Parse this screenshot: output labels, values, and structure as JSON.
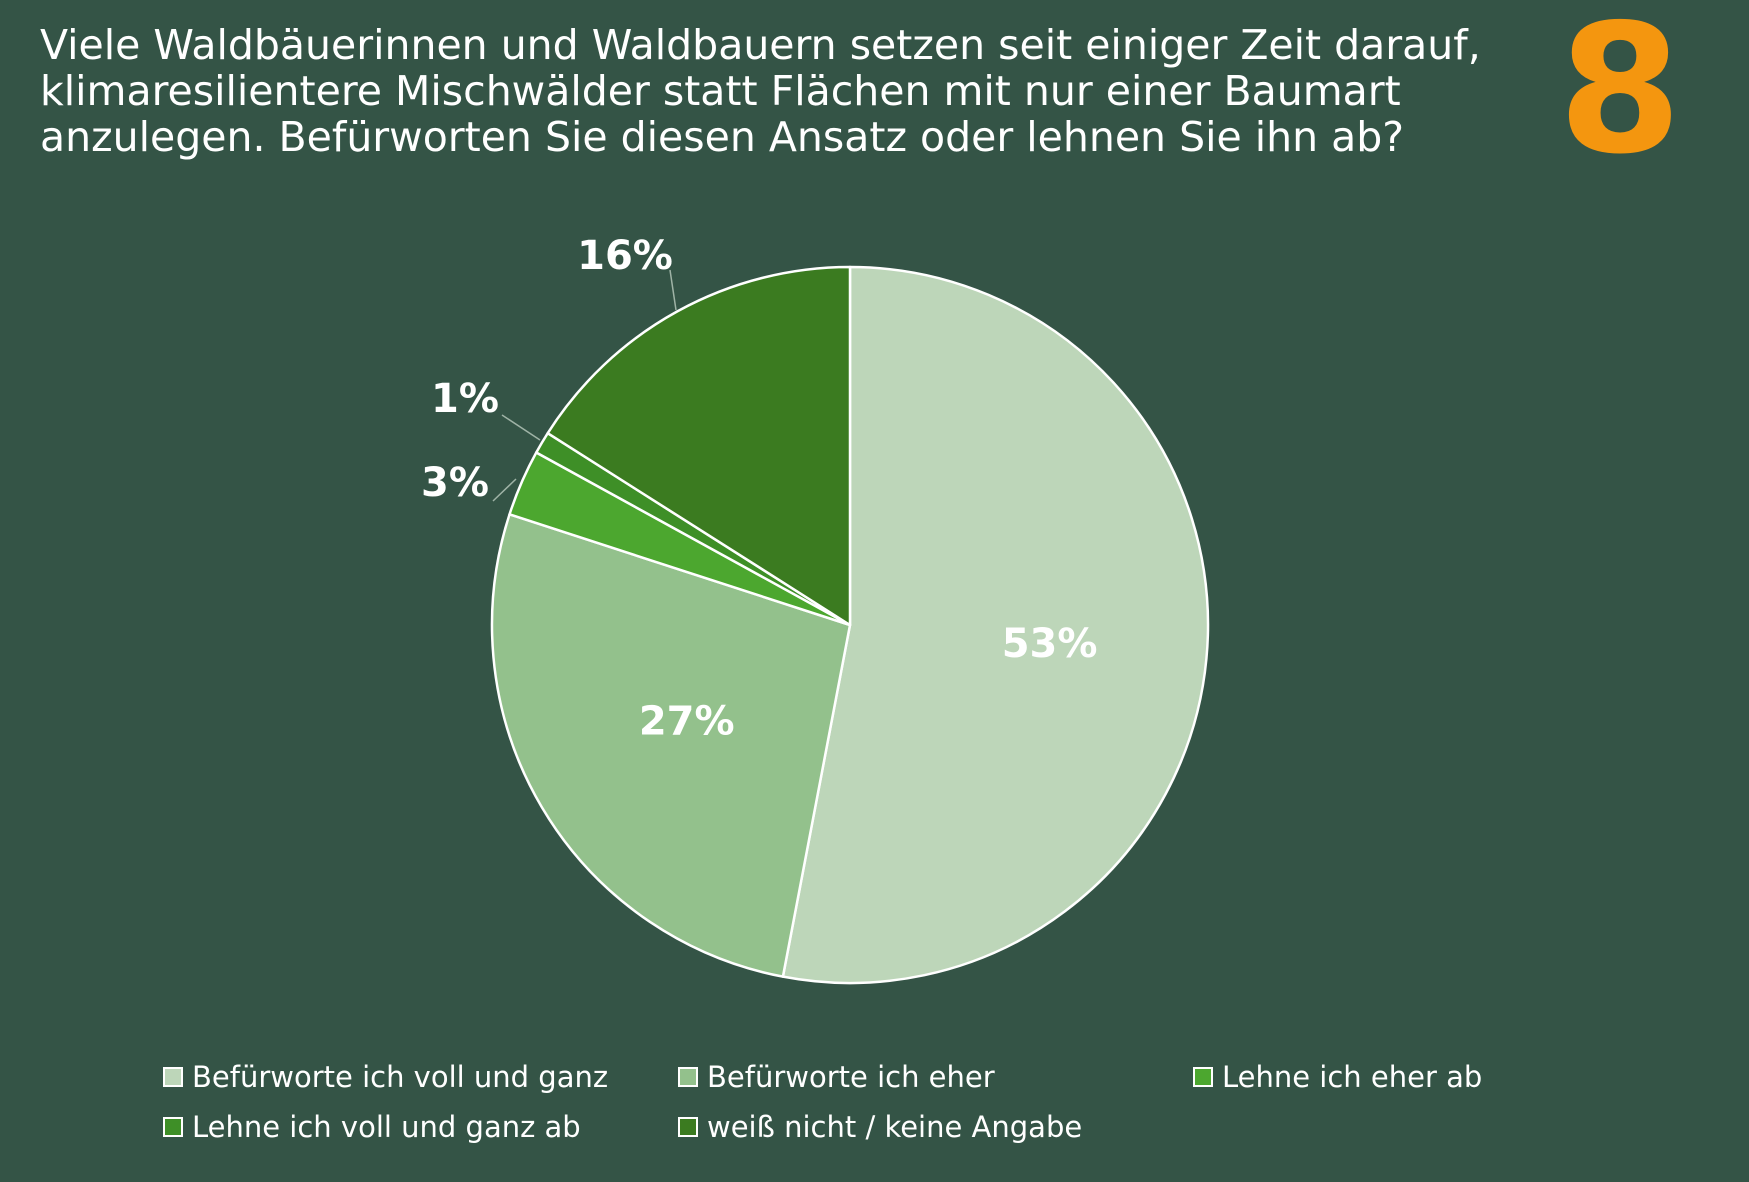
{
  "header": {
    "question": "Viele Waldbäuerinnen und Waldbauern setzen seit einiger Zeit darauf, klimaresilientere Mischwälder statt Flächen mit nur einer Baumart anzulegen. Befürworten Sie diesen Ansatz oder lehnen Sie ihn ab?",
    "number": "8"
  },
  "colors": {
    "background": "#345446",
    "accent": "#f4960f"
  },
  "chart_data": {
    "type": "pie",
    "slices": [
      {
        "name": "Befürworte ich voll und ganz",
        "value": 53,
        "label": "53%",
        "color": "#bdd6b9"
      },
      {
        "name": "Befürworte ich eher",
        "value": 27,
        "label": "27%",
        "color": "#93c18c"
      },
      {
        "name": "Lehne ich eher ab",
        "value": 3,
        "label": "3%",
        "color": "#4ca72f"
      },
      {
        "name": "Lehne ich voll und ganz ab",
        "value": 1,
        "label": "1%",
        "color": "#3e8f27"
      },
      {
        "name": "weiß nicht / keine Angabe",
        "value": 16,
        "label": "16%",
        "color": "#3b7b20"
      }
    ],
    "legend_position": "bottom"
  }
}
